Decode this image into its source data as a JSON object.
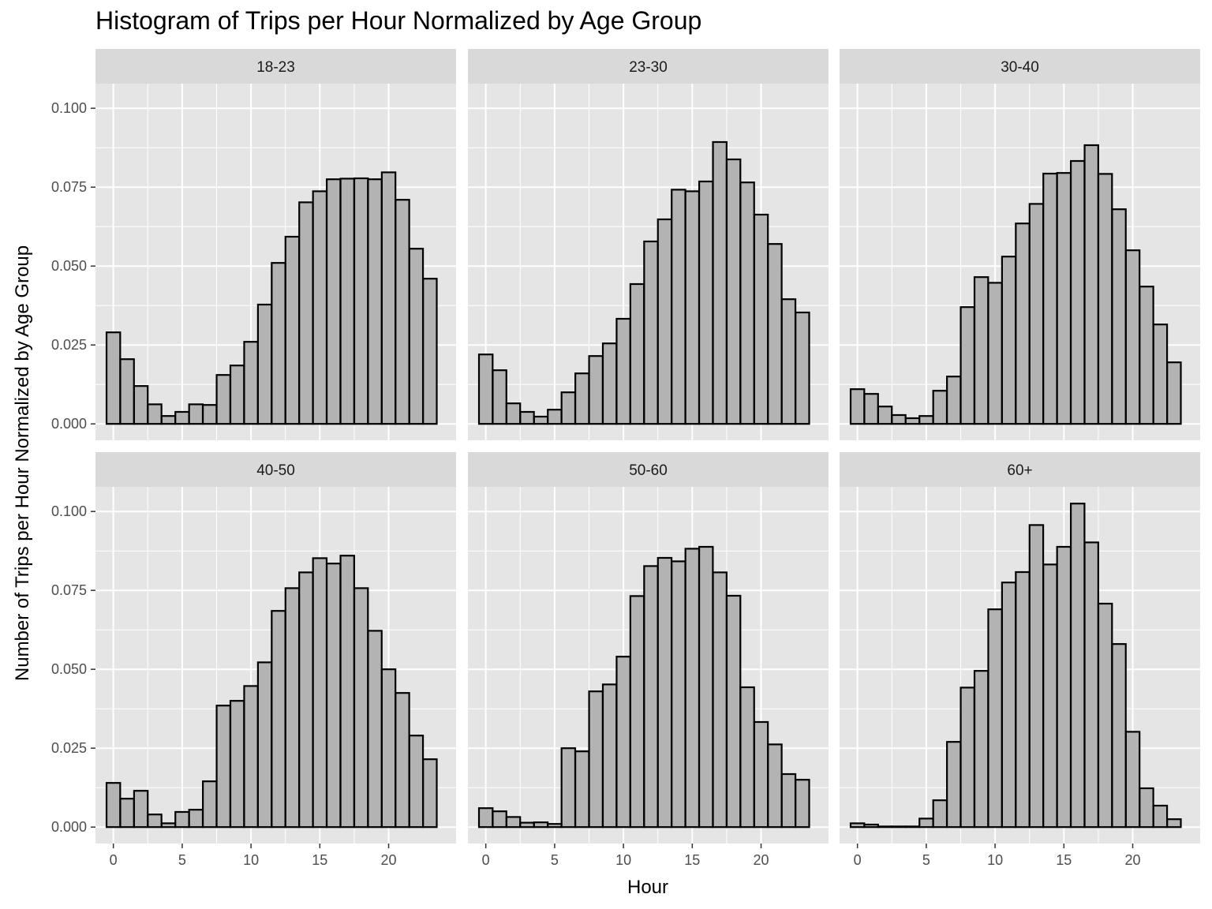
{
  "chart_data": {
    "type": "bar",
    "title": "Histogram of Trips per Hour Normalized by Age Group",
    "xlabel": "Hour",
    "ylabel": "Number of Trips per Hour Normalized by Age Group",
    "x_ticks": [
      0,
      5,
      10,
      15,
      20
    ],
    "y_ticks": [
      0.0,
      0.025,
      0.05,
      0.075,
      0.1
    ],
    "y_tick_labels": [
      "0.000",
      "0.025",
      "0.050",
      "0.075",
      "0.100"
    ],
    "xlim": [
      -1.3,
      24.9
    ],
    "ylim": [
      -0.0052,
      0.1078
    ],
    "grid": true,
    "bar_fill": "#b3b3b3",
    "bar_stroke": "#000000",
    "panel_background": "#e5e5e5",
    "strip_background": "#d9d9d9",
    "grid_color": "#ffffff",
    "categories": [
      0,
      1,
      2,
      3,
      4,
      5,
      6,
      7,
      8,
      9,
      10,
      11,
      12,
      13,
      14,
      15,
      16,
      17,
      18,
      19,
      20,
      21,
      22,
      23
    ],
    "series": [
      {
        "name": "18-23",
        "values": [
          0.029,
          0.0205,
          0.012,
          0.0062,
          0.0025,
          0.0038,
          0.0062,
          0.006,
          0.0155,
          0.0185,
          0.026,
          0.0378,
          0.051,
          0.0593,
          0.0702,
          0.0737,
          0.0775,
          0.0777,
          0.0778,
          0.0775,
          0.0797,
          0.071,
          0.0555,
          0.046
        ]
      },
      {
        "name": "23-30",
        "values": [
          0.022,
          0.017,
          0.0065,
          0.0038,
          0.0023,
          0.0045,
          0.01,
          0.016,
          0.0215,
          0.0255,
          0.0333,
          0.0443,
          0.0578,
          0.0648,
          0.0742,
          0.0737,
          0.0768,
          0.0893,
          0.0838,
          0.0765,
          0.0663,
          0.057,
          0.0395,
          0.0353
        ]
      },
      {
        "name": "30-40",
        "values": [
          0.011,
          0.0095,
          0.0055,
          0.0028,
          0.0018,
          0.0025,
          0.0105,
          0.015,
          0.037,
          0.0465,
          0.0447,
          0.053,
          0.0635,
          0.0697,
          0.0793,
          0.0795,
          0.0833,
          0.0883,
          0.0792,
          0.068,
          0.055,
          0.0435,
          0.0315,
          0.0195
        ]
      },
      {
        "name": "40-50",
        "values": [
          0.014,
          0.009,
          0.0115,
          0.004,
          0.0012,
          0.0048,
          0.0055,
          0.0145,
          0.0385,
          0.04,
          0.0447,
          0.0522,
          0.0685,
          0.0757,
          0.0807,
          0.0852,
          0.0835,
          0.086,
          0.0757,
          0.0622,
          0.05,
          0.0425,
          0.029,
          0.0215
        ]
      },
      {
        "name": "50-60",
        "values": [
          0.006,
          0.005,
          0.0032,
          0.0014,
          0.0015,
          0.001,
          0.025,
          0.024,
          0.043,
          0.0452,
          0.054,
          0.0732,
          0.0827,
          0.0853,
          0.0842,
          0.0882,
          0.0888,
          0.0807,
          0.0733,
          0.0443,
          0.0333,
          0.0262,
          0.0168,
          0.015
        ]
      },
      {
        "name": "60+",
        "values": [
          0.0012,
          0.0008,
          0.0002,
          0.0002,
          0.0002,
          0.0027,
          0.0085,
          0.027,
          0.0442,
          0.0495,
          0.069,
          0.0775,
          0.0808,
          0.0957,
          0.0832,
          0.0888,
          0.1025,
          0.0902,
          0.0708,
          0.058,
          0.0302,
          0.0123,
          0.0068,
          0.0025
        ]
      }
    ]
  }
}
